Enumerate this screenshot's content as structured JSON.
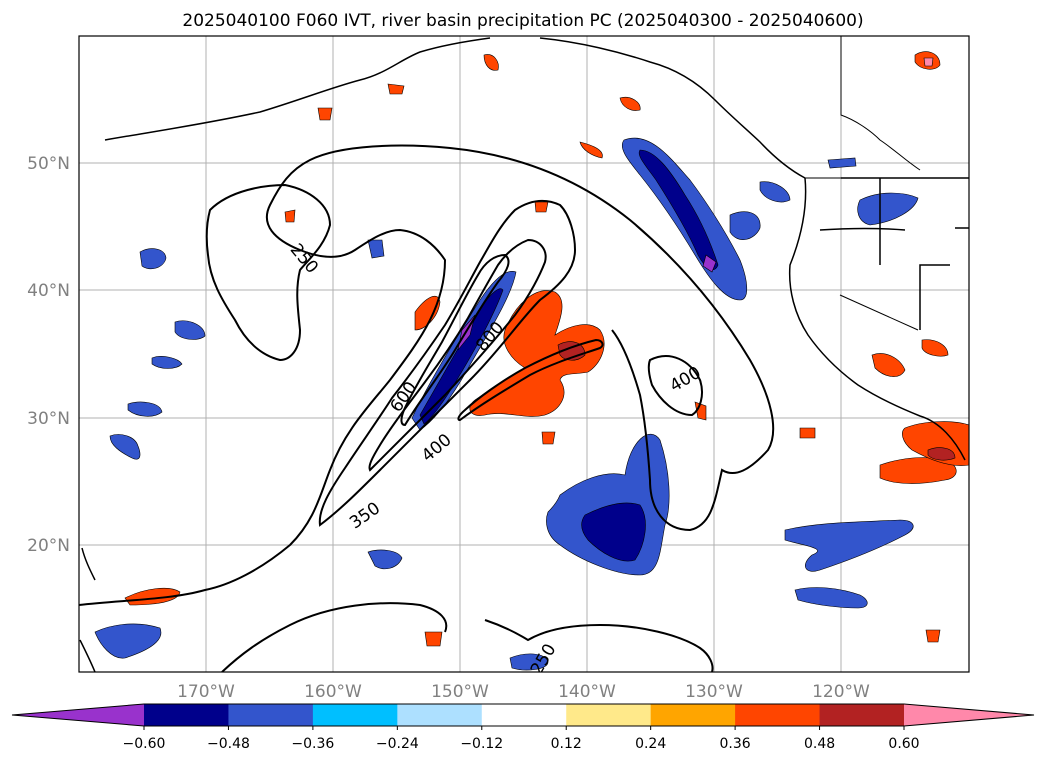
{
  "title": "2025040100 F060 IVT, river basin precipitation PC (2025040300 - 2025040600)",
  "map": {
    "lon_labels": [
      "170°W",
      "160°W",
      "150°W",
      "140°W",
      "130°W",
      "120°W"
    ],
    "lat_labels": [
      "50°N",
      "40°N",
      "30°N",
      "20°N"
    ],
    "axis_label_color": "#808080",
    "grid": true,
    "coastline_color": "#000000"
  },
  "contours": {
    "color": "#000000",
    "labels": [
      "250",
      "400",
      "600",
      "800",
      "400",
      "350",
      "250"
    ]
  },
  "colorbar": {
    "colors": [
      "#9932CC",
      "#00008B",
      "#3355CC",
      "#00BFFF",
      "#ADE0FF",
      "#FFFFFF",
      "#FFE98A",
      "#FFA500",
      "#FF4500",
      "#B22222",
      "#FF88AA"
    ],
    "tick_labels": [
      "−0.60",
      "−0.48",
      "−0.36",
      "−0.24",
      "−0.12",
      "0.12",
      "0.24",
      "0.36",
      "0.48",
      "0.60"
    ]
  },
  "legend_colors": {
    "strong_negative": "#00008B",
    "negative": "#3355CC",
    "weak_negative": "#00BFFF",
    "weak_positive": "#FFA500",
    "positive": "#FF4500",
    "strong_positive": "#B22222"
  }
}
